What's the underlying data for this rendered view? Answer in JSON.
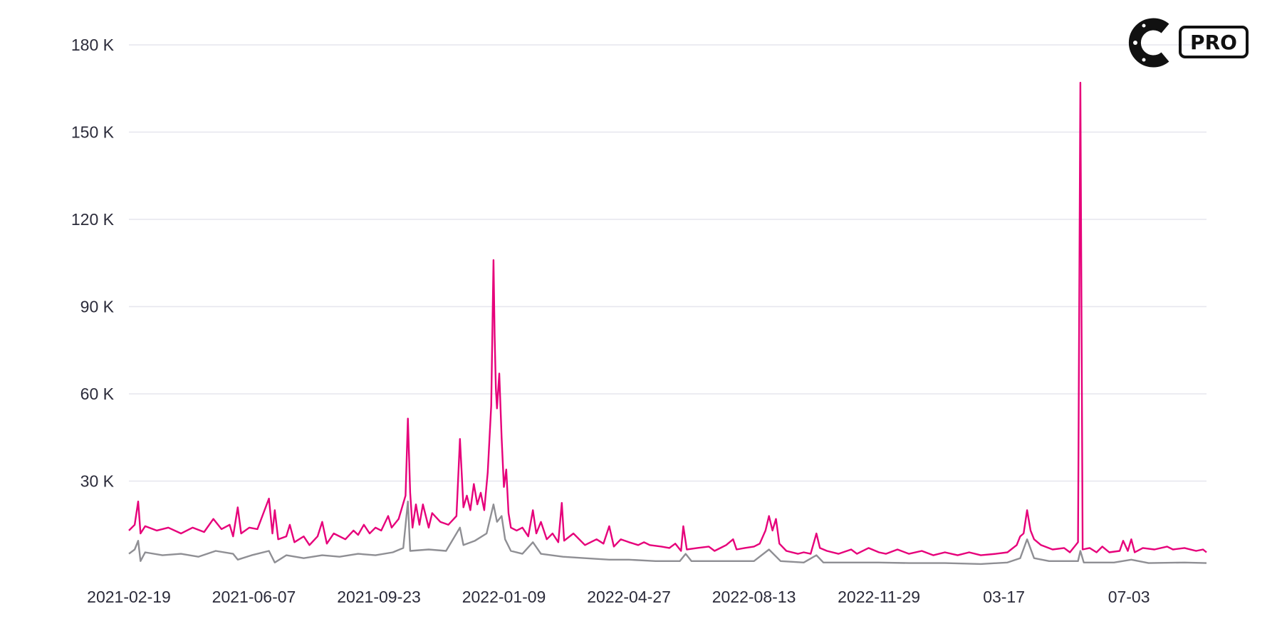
{
  "logo": {
    "badge_text": "PRO"
  },
  "chart_data": {
    "type": "line",
    "title": "",
    "xlabel": "",
    "ylabel": "",
    "x_start": "2021-02-19",
    "x_end": "2023-09-08",
    "ylim": [
      0,
      180000
    ],
    "y_ticks": [
      {
        "value": 30000,
        "label": "30 K"
      },
      {
        "value": 60000,
        "label": "60 K"
      },
      {
        "value": 90000,
        "label": "90 K"
      },
      {
        "value": 120000,
        "label": "120 K"
      },
      {
        "value": 150000,
        "label": "150 K"
      },
      {
        "value": 180000,
        "label": "180 K"
      }
    ],
    "x_ticks": [
      {
        "date": "2021-02-19",
        "label": "2021-02-19"
      },
      {
        "date": "2021-06-07",
        "label": "2021-06-07"
      },
      {
        "date": "2021-09-23",
        "label": "2021-09-23"
      },
      {
        "date": "2022-01-09",
        "label": "2022-01-09"
      },
      {
        "date": "2022-04-27",
        "label": "2022-04-27"
      },
      {
        "date": "2022-08-13",
        "label": "2022-08-13"
      },
      {
        "date": "2022-11-29",
        "label": "2022-11-29"
      },
      {
        "date": "2023-03-17",
        "label": "03-17"
      },
      {
        "date": "2023-07-03",
        "label": "07-03"
      }
    ],
    "grid": true,
    "series": [
      {
        "color": "#e6007a",
        "points": [
          [
            "2021-02-19",
            13000
          ],
          [
            "2021-02-24",
            15000
          ],
          [
            "2021-02-27",
            23000
          ],
          [
            "2021-03-01",
            12000
          ],
          [
            "2021-03-05",
            14500
          ],
          [
            "2021-03-15",
            13000
          ],
          [
            "2021-03-25",
            14000
          ],
          [
            "2021-04-05",
            12000
          ],
          [
            "2021-04-15",
            14000
          ],
          [
            "2021-04-25",
            12500
          ],
          [
            "2021-05-03",
            17000
          ],
          [
            "2021-05-10",
            13500
          ],
          [
            "2021-05-17",
            15000
          ],
          [
            "2021-05-20",
            11000
          ],
          [
            "2021-05-24",
            21000
          ],
          [
            "2021-05-27",
            12000
          ],
          [
            "2021-06-03",
            14000
          ],
          [
            "2021-06-10",
            13500
          ],
          [
            "2021-06-20",
            24000
          ],
          [
            "2021-06-23",
            12000
          ],
          [
            "2021-06-25",
            20000
          ],
          [
            "2021-06-28",
            10000
          ],
          [
            "2021-07-05",
            11000
          ],
          [
            "2021-07-08",
            15000
          ],
          [
            "2021-07-12",
            9000
          ],
          [
            "2021-07-20",
            11000
          ],
          [
            "2021-07-25",
            8000
          ],
          [
            "2021-08-01",
            11000
          ],
          [
            "2021-08-05",
            16000
          ],
          [
            "2021-08-09",
            8500
          ],
          [
            "2021-08-15",
            12000
          ],
          [
            "2021-08-25",
            10000
          ],
          [
            "2021-09-01",
            13000
          ],
          [
            "2021-09-05",
            11500
          ],
          [
            "2021-09-10",
            15000
          ],
          [
            "2021-09-15",
            12000
          ],
          [
            "2021-09-20",
            14000
          ],
          [
            "2021-09-25",
            13000
          ],
          [
            "2021-10-01",
            18000
          ],
          [
            "2021-10-04",
            14000
          ],
          [
            "2021-10-10",
            17000
          ],
          [
            "2021-10-16",
            25000
          ],
          [
            "2021-10-18",
            51500
          ],
          [
            "2021-10-20",
            26000
          ],
          [
            "2021-10-22",
            14000
          ],
          [
            "2021-10-25",
            22000
          ],
          [
            "2021-10-28",
            15000
          ],
          [
            "2021-10-31",
            22000
          ],
          [
            "2021-11-05",
            14000
          ],
          [
            "2021-11-08",
            19000
          ],
          [
            "2021-11-15",
            16000
          ],
          [
            "2021-11-22",
            15000
          ],
          [
            "2021-11-29",
            18000
          ],
          [
            "2021-12-02",
            44500
          ],
          [
            "2021-12-05",
            21000
          ],
          [
            "2021-12-08",
            25000
          ],
          [
            "2021-12-11",
            20000
          ],
          [
            "2021-12-14",
            29000
          ],
          [
            "2021-12-17",
            22000
          ],
          [
            "2021-12-20",
            26000
          ],
          [
            "2021-12-23",
            20000
          ],
          [
            "2021-12-26",
            33000
          ],
          [
            "2021-12-29",
            56000
          ],
          [
            "2021-12-31",
            106000
          ],
          [
            "2022-01-01",
            80000
          ],
          [
            "2022-01-02",
            62000
          ],
          [
            "2022-01-03",
            55000
          ],
          [
            "2022-01-05",
            67000
          ],
          [
            "2022-01-07",
            45000
          ],
          [
            "2022-01-09",
            28000
          ],
          [
            "2022-01-11",
            34000
          ],
          [
            "2022-01-13",
            19000
          ],
          [
            "2022-01-15",
            14000
          ],
          [
            "2022-01-20",
            13000
          ],
          [
            "2022-01-25",
            14000
          ],
          [
            "2022-01-30",
            11000
          ],
          [
            "2022-02-03",
            20000
          ],
          [
            "2022-02-06",
            12000
          ],
          [
            "2022-02-10",
            16000
          ],
          [
            "2022-02-15",
            10000
          ],
          [
            "2022-02-20",
            12000
          ],
          [
            "2022-02-25",
            9000
          ],
          [
            "2022-02-28",
            22500
          ],
          [
            "2022-03-02",
            9500
          ],
          [
            "2022-03-10",
            12000
          ],
          [
            "2022-03-20",
            8000
          ],
          [
            "2022-03-30",
            10000
          ],
          [
            "2022-04-05",
            8500
          ],
          [
            "2022-04-10",
            14500
          ],
          [
            "2022-04-14",
            7500
          ],
          [
            "2022-04-20",
            10000
          ],
          [
            "2022-04-27",
            9000
          ],
          [
            "2022-05-05",
            8000
          ],
          [
            "2022-05-10",
            9000
          ],
          [
            "2022-05-15",
            8000
          ],
          [
            "2022-05-25",
            7500
          ],
          [
            "2022-06-01",
            7000
          ],
          [
            "2022-06-06",
            8500
          ],
          [
            "2022-06-11",
            6000
          ],
          [
            "2022-06-13",
            14500
          ],
          [
            "2022-06-16",
            6500
          ],
          [
            "2022-06-25",
            7000
          ],
          [
            "2022-07-05",
            7500
          ],
          [
            "2022-07-10",
            6000
          ],
          [
            "2022-07-20",
            8000
          ],
          [
            "2022-07-26",
            10000
          ],
          [
            "2022-07-29",
            6500
          ],
          [
            "2022-08-05",
            7000
          ],
          [
            "2022-08-13",
            7500
          ],
          [
            "2022-08-18",
            8500
          ],
          [
            "2022-08-23",
            13000
          ],
          [
            "2022-08-26",
            18000
          ],
          [
            "2022-08-29",
            13000
          ],
          [
            "2022-09-01",
            17000
          ],
          [
            "2022-09-04",
            8500
          ],
          [
            "2022-09-10",
            6000
          ],
          [
            "2022-09-20",
            5000
          ],
          [
            "2022-09-25",
            5500
          ],
          [
            "2022-10-01",
            5000
          ],
          [
            "2022-10-06",
            12000
          ],
          [
            "2022-10-09",
            7000
          ],
          [
            "2022-10-15",
            6000
          ],
          [
            "2022-10-25",
            5000
          ],
          [
            "2022-11-05",
            6500
          ],
          [
            "2022-11-10",
            5000
          ],
          [
            "2022-11-20",
            7000
          ],
          [
            "2022-11-29",
            5500
          ],
          [
            "2022-12-05",
            5000
          ],
          [
            "2022-12-15",
            6500
          ],
          [
            "2022-12-25",
            5000
          ],
          [
            "2023-01-05",
            6000
          ],
          [
            "2023-01-15",
            4500
          ],
          [
            "2023-01-25",
            5500
          ],
          [
            "2023-02-05",
            4500
          ],
          [
            "2023-02-15",
            5500
          ],
          [
            "2023-02-25",
            4500
          ],
          [
            "2023-03-10",
            5000
          ],
          [
            "2023-03-20",
            5500
          ],
          [
            "2023-03-28",
            8000
          ],
          [
            "2023-03-31",
            11000
          ],
          [
            "2023-04-03",
            12000
          ],
          [
            "2023-04-06",
            20000
          ],
          [
            "2023-04-09",
            13000
          ],
          [
            "2023-04-12",
            10000
          ],
          [
            "2023-04-18",
            8000
          ],
          [
            "2023-04-28",
            6500
          ],
          [
            "2023-05-08",
            7000
          ],
          [
            "2023-05-13",
            5500
          ],
          [
            "2023-05-20",
            9000
          ],
          [
            "2023-05-22",
            167000
          ],
          [
            "2023-05-24",
            6500
          ],
          [
            "2023-05-30",
            7000
          ],
          [
            "2023-06-05",
            5500
          ],
          [
            "2023-06-10",
            7500
          ],
          [
            "2023-06-16",
            5500
          ],
          [
            "2023-06-25",
            6000
          ],
          [
            "2023-06-28",
            9500
          ],
          [
            "2023-07-02",
            6000
          ],
          [
            "2023-07-05",
            10000
          ],
          [
            "2023-07-08",
            5500
          ],
          [
            "2023-07-15",
            7000
          ],
          [
            "2023-07-25",
            6500
          ],
          [
            "2023-08-05",
            7500
          ],
          [
            "2023-08-10",
            6500
          ],
          [
            "2023-08-20",
            7000
          ],
          [
            "2023-08-30",
            6000
          ],
          [
            "2023-09-05",
            6500
          ],
          [
            "2023-09-08",
            5500
          ]
        ]
      },
      {
        "color": "#8f8f94",
        "points": [
          [
            "2021-02-19",
            5000
          ],
          [
            "2021-02-24",
            6500
          ],
          [
            "2021-02-27",
            9500
          ],
          [
            "2021-03-01",
            2500
          ],
          [
            "2021-03-05",
            5500
          ],
          [
            "2021-03-20",
            4500
          ],
          [
            "2021-04-05",
            5000
          ],
          [
            "2021-04-20",
            4000
          ],
          [
            "2021-05-05",
            6000
          ],
          [
            "2021-05-20",
            5000
          ],
          [
            "2021-05-24",
            3000
          ],
          [
            "2021-06-05",
            4500
          ],
          [
            "2021-06-20",
            6000
          ],
          [
            "2021-06-25",
            2000
          ],
          [
            "2021-07-05",
            4500
          ],
          [
            "2021-07-20",
            3500
          ],
          [
            "2021-08-05",
            4500
          ],
          [
            "2021-08-20",
            4000
          ],
          [
            "2021-09-05",
            5000
          ],
          [
            "2021-09-20",
            4500
          ],
          [
            "2021-10-05",
            5500
          ],
          [
            "2021-10-14",
            7000
          ],
          [
            "2021-10-18",
            23000
          ],
          [
            "2021-10-20",
            6000
          ],
          [
            "2021-11-05",
            6500
          ],
          [
            "2021-11-20",
            6000
          ],
          [
            "2021-12-02",
            14000
          ],
          [
            "2021-12-05",
            8000
          ],
          [
            "2021-12-15",
            9500
          ],
          [
            "2021-12-25",
            12000
          ],
          [
            "2021-12-31",
            22000
          ],
          [
            "2022-01-03",
            16000
          ],
          [
            "2022-01-07",
            18000
          ],
          [
            "2022-01-10",
            10000
          ],
          [
            "2022-01-15",
            6000
          ],
          [
            "2022-01-25",
            5000
          ],
          [
            "2022-02-03",
            9000
          ],
          [
            "2022-02-10",
            5000
          ],
          [
            "2022-03-01",
            4000
          ],
          [
            "2022-03-20",
            3500
          ],
          [
            "2022-04-10",
            3000
          ],
          [
            "2022-04-27",
            3000
          ],
          [
            "2022-05-20",
            2500
          ],
          [
            "2022-06-10",
            2500
          ],
          [
            "2022-06-15",
            5000
          ],
          [
            "2022-06-20",
            2500
          ],
          [
            "2022-07-20",
            2500
          ],
          [
            "2022-08-13",
            2500
          ],
          [
            "2022-08-26",
            6500
          ],
          [
            "2022-09-05",
            2500
          ],
          [
            "2022-09-25",
            2000
          ],
          [
            "2022-10-06",
            4500
          ],
          [
            "2022-10-12",
            2000
          ],
          [
            "2022-11-05",
            2000
          ],
          [
            "2022-11-29",
            2000
          ],
          [
            "2022-12-25",
            1800
          ],
          [
            "2023-01-25",
            1800
          ],
          [
            "2023-02-25",
            1500
          ],
          [
            "2023-03-20",
            2000
          ],
          [
            "2023-03-31",
            3500
          ],
          [
            "2023-04-06",
            10000
          ],
          [
            "2023-04-12",
            3500
          ],
          [
            "2023-04-25",
            2500
          ],
          [
            "2023-05-20",
            2500
          ],
          [
            "2023-05-22",
            6000
          ],
          [
            "2023-05-25",
            2000
          ],
          [
            "2023-06-20",
            2000
          ],
          [
            "2023-07-05",
            3000
          ],
          [
            "2023-07-20",
            1800
          ],
          [
            "2023-08-20",
            2000
          ],
          [
            "2023-09-08",
            1800
          ]
        ]
      }
    ]
  }
}
